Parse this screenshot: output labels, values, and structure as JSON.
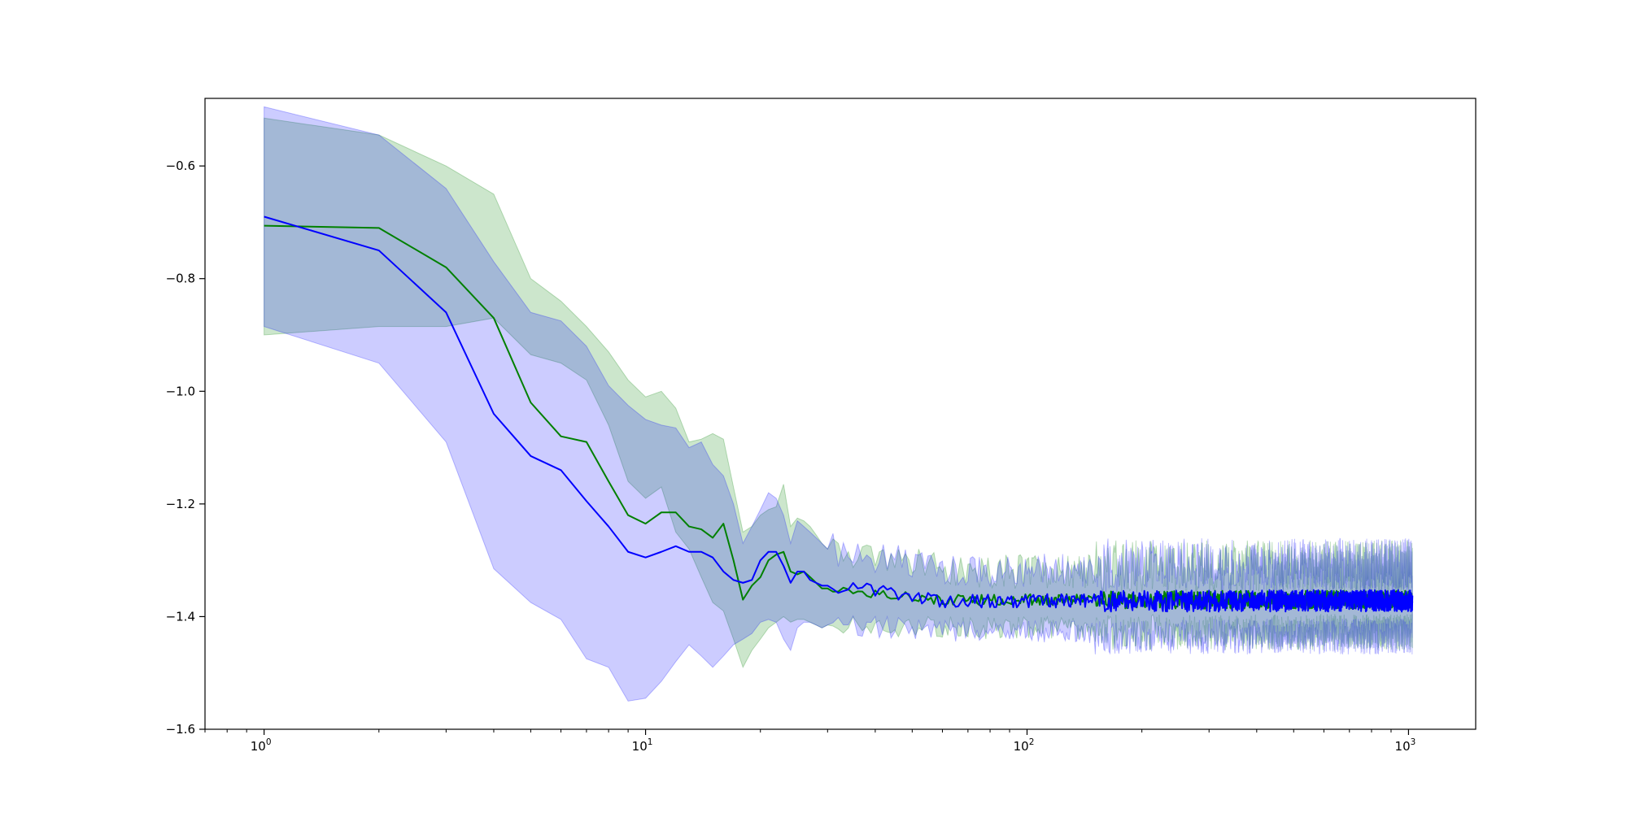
{
  "chart_data": {
    "type": "line",
    "title": "",
    "xlabel": "",
    "ylabel": "",
    "xscale": "log",
    "xlim": [
      0.7,
      1500
    ],
    "ylim": [
      -1.6,
      -0.48
    ],
    "grid": false,
    "legend": "none",
    "xticks": [
      {
        "value": 1,
        "base": "10",
        "exp": "0"
      },
      {
        "value": 10,
        "base": "10",
        "exp": "1"
      },
      {
        "value": 100,
        "base": "10",
        "exp": "2"
      },
      {
        "value": 1000,
        "base": "10",
        "exp": "3"
      }
    ],
    "yticks": [
      {
        "value": -0.6,
        "label": "−0.6"
      },
      {
        "value": -0.8,
        "label": "−0.8"
      },
      {
        "value": -1.0,
        "label": "−1.0"
      },
      {
        "value": -1.2,
        "label": "−1.2"
      },
      {
        "value": -1.4,
        "label": "−1.4"
      },
      {
        "value": -1.6,
        "label": "−1.6"
      }
    ],
    "series": [
      {
        "color": "#008000",
        "band_color": "#008000",
        "band_opacity": 0.2,
        "early": {
          "x": [
            1,
            2,
            3,
            4,
            5,
            6,
            7,
            8,
            9,
            10,
            11,
            12,
            13,
            14,
            15,
            16,
            17,
            18,
            19,
            20,
            21,
            22,
            23,
            24,
            25,
            26,
            27,
            28,
            29,
            30
          ],
          "mean": [
            -0.706,
            -0.71,
            -0.78,
            -0.87,
            -1.02,
            -1.08,
            -1.09,
            -1.16,
            -1.22,
            -1.235,
            -1.215,
            -1.215,
            -1.24,
            -1.245,
            -1.26,
            -1.235,
            -1.3,
            -1.37,
            -1.345,
            -1.33,
            -1.3,
            -1.29,
            -1.285,
            -1.32,
            -1.325,
            -1.32,
            -1.33,
            -1.34,
            -1.35,
            -1.35
          ],
          "upper": [
            -0.515,
            -0.545,
            -0.6,
            -0.65,
            -0.8,
            -0.84,
            -0.885,
            -0.93,
            -0.98,
            -1.01,
            -1.0,
            -1.03,
            -1.09,
            -1.085,
            -1.075,
            -1.085,
            -1.17,
            -1.25,
            -1.24,
            -1.22,
            -1.21,
            -1.205,
            -1.165,
            -1.24,
            -1.225,
            -1.23,
            -1.24,
            -1.255,
            -1.27,
            -1.28
          ],
          "lower": [
            -0.9,
            -0.885,
            -0.885,
            -0.87,
            -0.935,
            -0.95,
            -0.98,
            -1.06,
            -1.16,
            -1.19,
            -1.17,
            -1.25,
            -1.28,
            -1.33,
            -1.375,
            -1.39,
            -1.44,
            -1.49,
            -1.46,
            -1.44,
            -1.42,
            -1.41,
            -1.4,
            -1.41,
            -1.405,
            -1.405,
            -1.41,
            -1.415,
            -1.42,
            -1.415
          ]
        },
        "tail": {
          "from": 30,
          "to": 1024,
          "mean": -1.37,
          "noise": 0.01,
          "band_halfwidth": 0.05
        }
      },
      {
        "color": "#0000ff",
        "band_color": "#0000ff",
        "band_opacity": 0.2,
        "early": {
          "x": [
            1,
            2,
            3,
            4,
            5,
            6,
            7,
            8,
            9,
            10,
            11,
            12,
            13,
            14,
            15,
            16,
            17,
            18,
            19,
            20,
            21,
            22,
            23,
            24,
            25,
            26,
            27,
            28,
            29,
            30
          ],
          "mean": [
            -0.69,
            -0.75,
            -0.86,
            -1.04,
            -1.115,
            -1.14,
            -1.195,
            -1.24,
            -1.285,
            -1.295,
            -1.285,
            -1.275,
            -1.285,
            -1.285,
            -1.295,
            -1.32,
            -1.335,
            -1.34,
            -1.335,
            -1.3,
            -1.285,
            -1.285,
            -1.31,
            -1.34,
            -1.32,
            -1.32,
            -1.335,
            -1.34,
            -1.345,
            -1.345
          ],
          "upper": [
            -0.495,
            -0.545,
            -0.64,
            -0.77,
            -0.86,
            -0.875,
            -0.92,
            -0.99,
            -1.025,
            -1.05,
            -1.06,
            -1.065,
            -1.1,
            -1.09,
            -1.13,
            -1.15,
            -1.2,
            -1.27,
            -1.24,
            -1.21,
            -1.18,
            -1.19,
            -1.22,
            -1.27,
            -1.23,
            -1.24,
            -1.25,
            -1.26,
            -1.27,
            -1.28
          ],
          "lower": [
            -0.885,
            -0.95,
            -1.09,
            -1.315,
            -1.375,
            -1.405,
            -1.475,
            -1.49,
            -1.55,
            -1.545,
            -1.515,
            -1.48,
            -1.45,
            -1.47,
            -1.49,
            -1.47,
            -1.45,
            -1.44,
            -1.43,
            -1.41,
            -1.405,
            -1.41,
            -1.44,
            -1.46,
            -1.42,
            -1.41,
            -1.41,
            -1.415,
            -1.42,
            -1.415
          ]
        },
        "tail": {
          "from": 30,
          "to": 1024,
          "mean": -1.372,
          "noise": 0.012,
          "band_halfwidth": 0.055
        }
      }
    ]
  }
}
